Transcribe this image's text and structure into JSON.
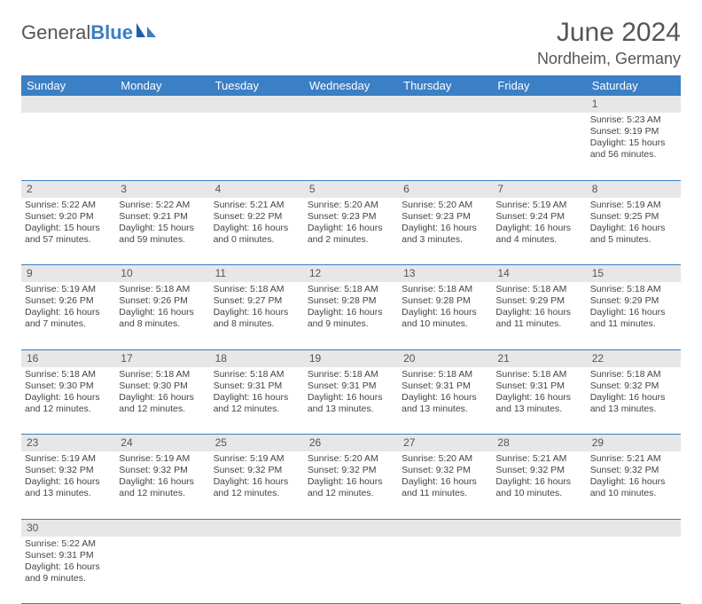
{
  "brand": {
    "part1": "General",
    "part2": "Blue"
  },
  "title": "June 2024",
  "location": "Nordheim, Germany",
  "colors": {
    "accent": "#3b7fc4",
    "header_bg": "#3b7fc4",
    "daynum_bg": "#e7e7e7"
  },
  "day_headers": [
    "Sunday",
    "Monday",
    "Tuesday",
    "Wednesday",
    "Thursday",
    "Friday",
    "Saturday"
  ],
  "weeks": [
    [
      null,
      null,
      null,
      null,
      null,
      null,
      {
        "n": "1",
        "sr": "Sunrise: 5:23 AM",
        "ss": "Sunset: 9:19 PM",
        "dl": "Daylight: 15 hours and 56 minutes."
      }
    ],
    [
      {
        "n": "2",
        "sr": "Sunrise: 5:22 AM",
        "ss": "Sunset: 9:20 PM",
        "dl": "Daylight: 15 hours and 57 minutes."
      },
      {
        "n": "3",
        "sr": "Sunrise: 5:22 AM",
        "ss": "Sunset: 9:21 PM",
        "dl": "Daylight: 15 hours and 59 minutes."
      },
      {
        "n": "4",
        "sr": "Sunrise: 5:21 AM",
        "ss": "Sunset: 9:22 PM",
        "dl": "Daylight: 16 hours and 0 minutes."
      },
      {
        "n": "5",
        "sr": "Sunrise: 5:20 AM",
        "ss": "Sunset: 9:23 PM",
        "dl": "Daylight: 16 hours and 2 minutes."
      },
      {
        "n": "6",
        "sr": "Sunrise: 5:20 AM",
        "ss": "Sunset: 9:23 PM",
        "dl": "Daylight: 16 hours and 3 minutes."
      },
      {
        "n": "7",
        "sr": "Sunrise: 5:19 AM",
        "ss": "Sunset: 9:24 PM",
        "dl": "Daylight: 16 hours and 4 minutes."
      },
      {
        "n": "8",
        "sr": "Sunrise: 5:19 AM",
        "ss": "Sunset: 9:25 PM",
        "dl": "Daylight: 16 hours and 5 minutes."
      }
    ],
    [
      {
        "n": "9",
        "sr": "Sunrise: 5:19 AM",
        "ss": "Sunset: 9:26 PM",
        "dl": "Daylight: 16 hours and 7 minutes."
      },
      {
        "n": "10",
        "sr": "Sunrise: 5:18 AM",
        "ss": "Sunset: 9:26 PM",
        "dl": "Daylight: 16 hours and 8 minutes."
      },
      {
        "n": "11",
        "sr": "Sunrise: 5:18 AM",
        "ss": "Sunset: 9:27 PM",
        "dl": "Daylight: 16 hours and 8 minutes."
      },
      {
        "n": "12",
        "sr": "Sunrise: 5:18 AM",
        "ss": "Sunset: 9:28 PM",
        "dl": "Daylight: 16 hours and 9 minutes."
      },
      {
        "n": "13",
        "sr": "Sunrise: 5:18 AM",
        "ss": "Sunset: 9:28 PM",
        "dl": "Daylight: 16 hours and 10 minutes."
      },
      {
        "n": "14",
        "sr": "Sunrise: 5:18 AM",
        "ss": "Sunset: 9:29 PM",
        "dl": "Daylight: 16 hours and 11 minutes."
      },
      {
        "n": "15",
        "sr": "Sunrise: 5:18 AM",
        "ss": "Sunset: 9:29 PM",
        "dl": "Daylight: 16 hours and 11 minutes."
      }
    ],
    [
      {
        "n": "16",
        "sr": "Sunrise: 5:18 AM",
        "ss": "Sunset: 9:30 PM",
        "dl": "Daylight: 16 hours and 12 minutes."
      },
      {
        "n": "17",
        "sr": "Sunrise: 5:18 AM",
        "ss": "Sunset: 9:30 PM",
        "dl": "Daylight: 16 hours and 12 minutes."
      },
      {
        "n": "18",
        "sr": "Sunrise: 5:18 AM",
        "ss": "Sunset: 9:31 PM",
        "dl": "Daylight: 16 hours and 12 minutes."
      },
      {
        "n": "19",
        "sr": "Sunrise: 5:18 AM",
        "ss": "Sunset: 9:31 PM",
        "dl": "Daylight: 16 hours and 13 minutes."
      },
      {
        "n": "20",
        "sr": "Sunrise: 5:18 AM",
        "ss": "Sunset: 9:31 PM",
        "dl": "Daylight: 16 hours and 13 minutes."
      },
      {
        "n": "21",
        "sr": "Sunrise: 5:18 AM",
        "ss": "Sunset: 9:31 PM",
        "dl": "Daylight: 16 hours and 13 minutes."
      },
      {
        "n": "22",
        "sr": "Sunrise: 5:18 AM",
        "ss": "Sunset: 9:32 PM",
        "dl": "Daylight: 16 hours and 13 minutes."
      }
    ],
    [
      {
        "n": "23",
        "sr": "Sunrise: 5:19 AM",
        "ss": "Sunset: 9:32 PM",
        "dl": "Daylight: 16 hours and 13 minutes."
      },
      {
        "n": "24",
        "sr": "Sunrise: 5:19 AM",
        "ss": "Sunset: 9:32 PM",
        "dl": "Daylight: 16 hours and 12 minutes."
      },
      {
        "n": "25",
        "sr": "Sunrise: 5:19 AM",
        "ss": "Sunset: 9:32 PM",
        "dl": "Daylight: 16 hours and 12 minutes."
      },
      {
        "n": "26",
        "sr": "Sunrise: 5:20 AM",
        "ss": "Sunset: 9:32 PM",
        "dl": "Daylight: 16 hours and 12 minutes."
      },
      {
        "n": "27",
        "sr": "Sunrise: 5:20 AM",
        "ss": "Sunset: 9:32 PM",
        "dl": "Daylight: 16 hours and 11 minutes."
      },
      {
        "n": "28",
        "sr": "Sunrise: 5:21 AM",
        "ss": "Sunset: 9:32 PM",
        "dl": "Daylight: 16 hours and 10 minutes."
      },
      {
        "n": "29",
        "sr": "Sunrise: 5:21 AM",
        "ss": "Sunset: 9:32 PM",
        "dl": "Daylight: 16 hours and 10 minutes."
      }
    ],
    [
      {
        "n": "30",
        "sr": "Sunrise: 5:22 AM",
        "ss": "Sunset: 9:31 PM",
        "dl": "Daylight: 16 hours and 9 minutes."
      },
      null,
      null,
      null,
      null,
      null,
      null
    ]
  ]
}
